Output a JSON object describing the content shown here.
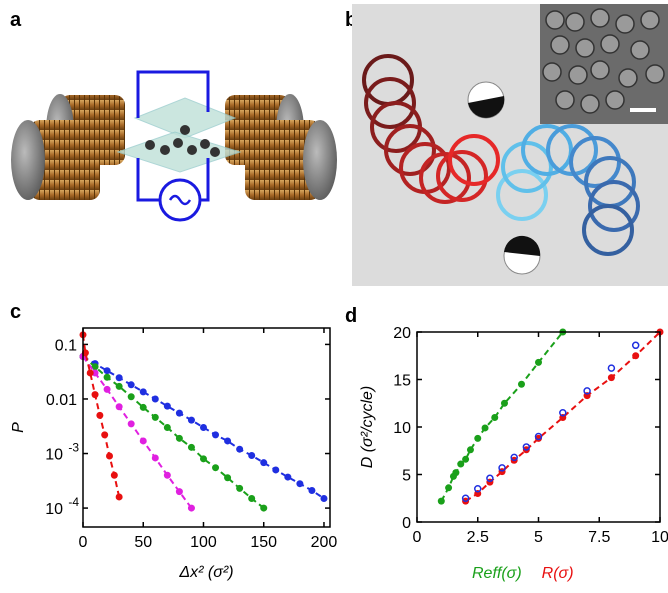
{
  "figures": [
    {
      "panel_label": "a"
    },
    {
      "panel_label": "b"
    }
  ],
  "chart_data": [
    {
      "type": "line",
      "panel_label": "c",
      "xlabel": "Δx² (σ²)",
      "ylabel": "P",
      "xlim": [
        0,
        205
      ],
      "xticks": [
        0,
        50,
        100,
        150,
        200
      ],
      "yscale": "log",
      "ylim": [
        4.5e-05,
        0.2
      ],
      "yticks": [
        0.1,
        0.01,
        {
          "value": 0.001,
          "label": "10",
          "exponent": "-3"
        },
        {
          "value": 0.0001,
          "label": "10",
          "exponent": "-4"
        }
      ],
      "series": [
        {
          "color": "#1f2fe0",
          "x": [
            0,
            10,
            20,
            30,
            40,
            50,
            60,
            70,
            80,
            90,
            100,
            110,
            120,
            130,
            140,
            150,
            160,
            170,
            180,
            190,
            200
          ],
          "values": [
            0.06,
            0.0444,
            0.033,
            0.0245,
            0.0182,
            0.0135,
            0.01,
            0.0074,
            0.0055,
            0.0041,
            0.003,
            0.0022,
            0.0017,
            0.0012,
            0.00092,
            0.00068,
            0.0005,
            0.00037,
            0.00028,
            0.00021,
            0.00015
          ]
        },
        {
          "color": "#1aa01a",
          "x": [
            0,
            10,
            20,
            30,
            40,
            50,
            60,
            70,
            80,
            90,
            100,
            110,
            120,
            130,
            140,
            150
          ],
          "values": [
            0.06,
            0.039,
            0.025,
            0.017,
            0.011,
            0.007,
            0.0046,
            0.003,
            0.0019,
            0.0013,
            0.0008,
            0.00055,
            0.00036,
            0.00023,
            0.00015,
            0.0001
          ]
        },
        {
          "color": "#e020e0",
          "x": [
            0,
            10,
            20,
            30,
            40,
            50,
            60,
            70,
            80,
            90
          ],
          "values": [
            0.06,
            0.03,
            0.015,
            0.0072,
            0.0035,
            0.0017,
            0.00083,
            0.0004,
            0.0002,
            0.0001
          ]
        },
        {
          "color": "#e81010",
          "x": [
            0,
            2,
            6,
            10,
            14,
            18,
            22,
            26,
            30
          ],
          "values": [
            0.15,
            0.07,
            0.03,
            0.012,
            0.005,
            0.0022,
            0.0009,
            0.0004,
            0.00016
          ]
        }
      ]
    },
    {
      "type": "scatter",
      "panel_label": "d",
      "ylabel": "D (σ²/cycle)",
      "xlim": [
        0,
        10
      ],
      "xticks": [
        0,
        2.5,
        5,
        7.5,
        10
      ],
      "ylim": [
        0,
        20
      ],
      "yticks": [
        0,
        5,
        10,
        15,
        20
      ],
      "series": [
        {
          "name": "Reff(σ)",
          "color": "#1aa01a",
          "dashed_line": true,
          "x": [
            1.0,
            1.3,
            1.5,
            1.6,
            1.8,
            2.0,
            2.2,
            2.5,
            2.8,
            3.2,
            3.6,
            4.3,
            5.0,
            6.0
          ],
          "values": [
            2.2,
            3.6,
            4.8,
            5.2,
            6.1,
            6.6,
            7.6,
            8.8,
            9.9,
            11,
            12.5,
            14.5,
            16.8,
            20
          ]
        },
        {
          "name": "R(σ)",
          "color": "#e81010",
          "dashed_line": true,
          "x": [
            2.0,
            2.5,
            3.0,
            3.5,
            4.0,
            4.5,
            5.0,
            6.0,
            7.0,
            8.0,
            9.0,
            10
          ],
          "values": [
            2.2,
            3.0,
            4.2,
            5.3,
            6.5,
            7.6,
            8.8,
            11,
            13.3,
            15.2,
            17.5,
            20
          ]
        },
        {
          "color": "#1f2fe0",
          "marker": "open",
          "x": [
            2.0,
            2.5,
            3.0,
            3.5,
            4.0,
            4.5,
            5.0,
            6.0,
            7.0,
            8.0,
            9.0
          ],
          "values": [
            2.5,
            3.5,
            4.6,
            5.7,
            6.8,
            7.9,
            9.0,
            11.5,
            13.8,
            16.2,
            18.6
          ]
        }
      ]
    }
  ]
}
